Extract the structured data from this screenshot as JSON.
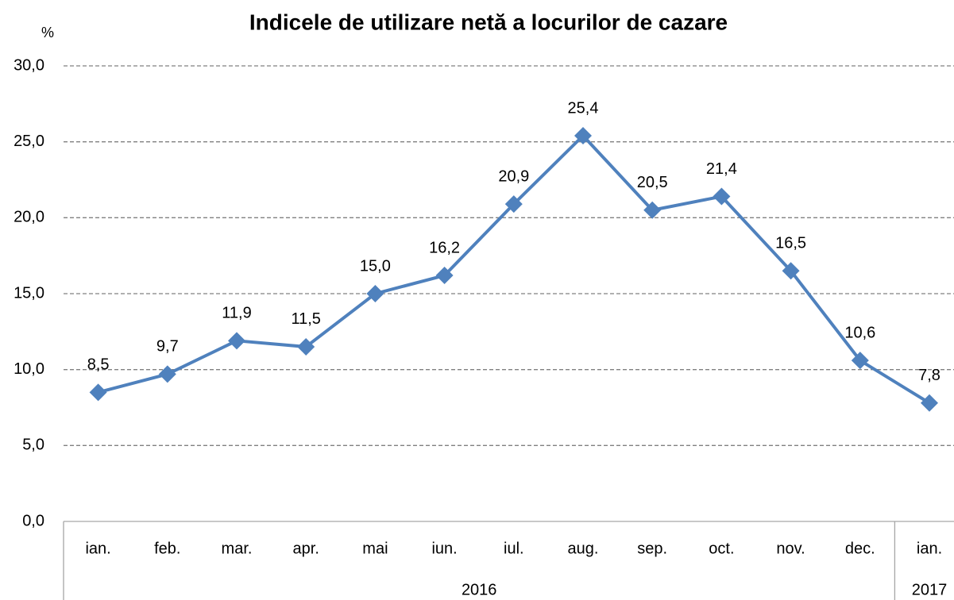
{
  "chart_data": {
    "type": "line",
    "title": "Indicele de utilizare netă a locurilor de cazare",
    "y_label": "%",
    "categories": [
      "ian.",
      "feb.",
      "mar.",
      "apr.",
      "mai",
      "iun.",
      "iul.",
      "aug.",
      "sep.",
      "oct.",
      "nov.",
      "dec.",
      "ian."
    ],
    "groups": [
      {
        "label": "2016",
        "count": 12
      },
      {
        "label": "2017",
        "count": 1
      }
    ],
    "series": [
      {
        "color": "#4f81bd",
        "values": [
          8.5,
          9.7,
          11.9,
          11.5,
          15.0,
          16.2,
          20.9,
          25.4,
          20.5,
          21.4,
          16.5,
          10.6,
          7.8
        ],
        "value_labels": [
          "8,5",
          "9,7",
          "11,9",
          "11,5",
          "15,0",
          "16,2",
          "20,9",
          "25,4",
          "20,5",
          "21,4",
          "16,5",
          "10,6",
          "7,8"
        ]
      }
    ],
    "ylim": [
      0,
      30
    ],
    "yticks": [
      {
        "value": 0,
        "label": "0,0"
      },
      {
        "value": 5,
        "label": "5,0"
      },
      {
        "value": 10,
        "label": "10,0"
      },
      {
        "value": 15,
        "label": "15,0"
      },
      {
        "value": 20,
        "label": "20,0"
      },
      {
        "value": 25,
        "label": "25,0"
      },
      {
        "value": 30,
        "label": "30,0"
      }
    ],
    "grid": true
  }
}
